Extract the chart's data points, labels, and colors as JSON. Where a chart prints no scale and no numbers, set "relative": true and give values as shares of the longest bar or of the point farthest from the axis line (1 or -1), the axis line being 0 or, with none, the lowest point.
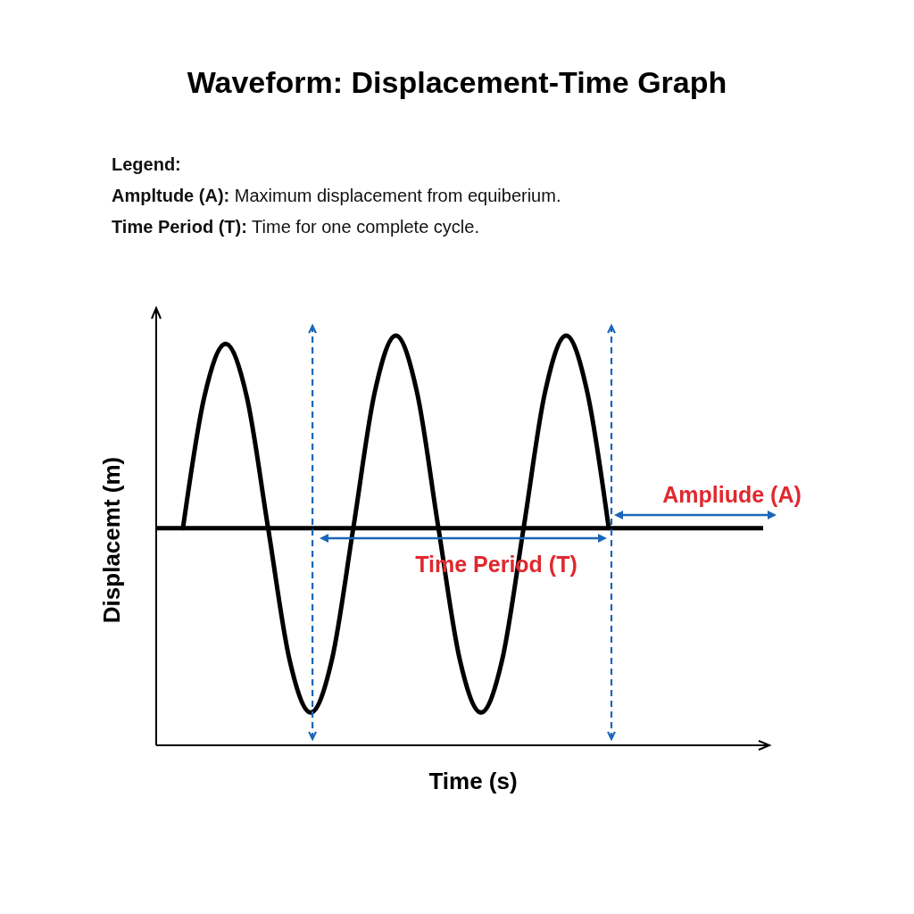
{
  "chart_data": {
    "type": "line",
    "title": "Waveform: Displacement-Time Graph",
    "xlabel": "Time (s)",
    "ylabel": "Displacemt (m)",
    "relative": true,
    "marker": "none",
    "line_style": "solid",
    "annotations": [
      "Legend:",
      "Ampltude (A): Maximum displacement from equiberium.",
      "Time Period (T): Time for one complete cycle.",
      "Ampliude (A)",
      "Time Period (T)"
    ],
    "categories": [
      null,
      null,
      null,
      null,
      null,
      null,
      null,
      null,
      null,
      null,
      null,
      null,
      null,
      null,
      null,
      null,
      null,
      null,
      null,
      null,
      null
    ],
    "series": [
      {
        "color": "#000000",
        "values": [
          0.53,
          0.85,
          0.98,
          0.85,
          0.53,
          0.21,
          0.08,
          0.21,
          0.53,
          0.86,
          1,
          0.86,
          0.53,
          0.21,
          0.08,
          0.21,
          0.53,
          0.86,
          1,
          0.86,
          0.53
        ]
      }
    ],
    "ref_lines": [
      {
        "axis": "y",
        "value": 0.53,
        "color": "#000000"
      }
    ]
  }
}
